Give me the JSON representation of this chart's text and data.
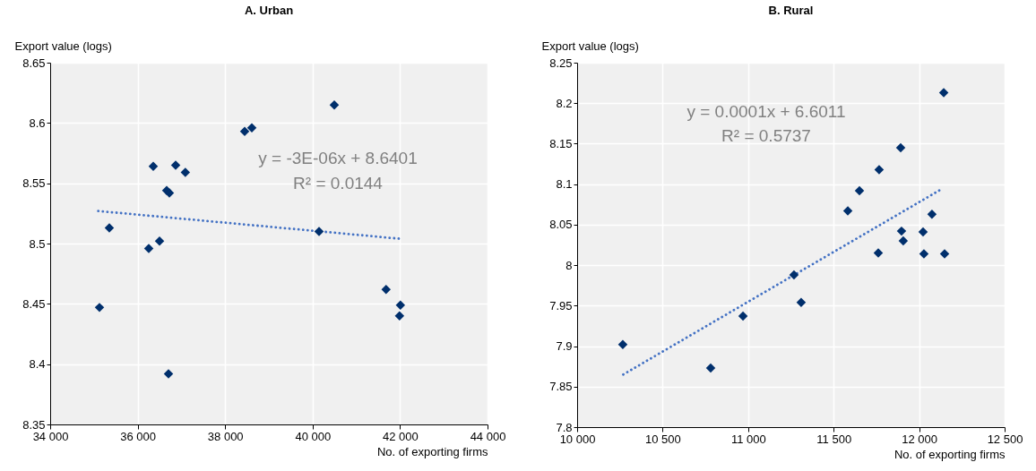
{
  "chart_data": [
    {
      "type": "scatter",
      "title": "A. Urban",
      "xlabel": "No. of exporting firms",
      "ylabel": "Export value (logs)",
      "xlim": [
        34000,
        44000
      ],
      "ylim": [
        8.35,
        8.65
      ],
      "xticks": [
        {
          "value": 34000,
          "label": "34 000"
        },
        {
          "value": 36000,
          "label": "36 000"
        },
        {
          "value": 38000,
          "label": "38 000"
        },
        {
          "value": 40000,
          "label": "40 000"
        },
        {
          "value": 42000,
          "label": "42 000"
        },
        {
          "value": 44000,
          "label": "44 000"
        }
      ],
      "yticks": [
        8.35,
        8.4,
        8.45,
        8.5,
        8.55,
        8.6,
        8.65
      ],
      "grid": true,
      "annotations": [
        "y = -3E-06x + 8.6401",
        "R² = 0.0144"
      ],
      "series": [
        {
          "color": "#002f6c",
          "marker": "diamond",
          "x": [
            35127,
            35352,
            36254,
            36357,
            36500,
            36664,
            36725,
            36869,
            37090,
            36705,
            38447,
            38611,
            40496,
            40148,
            41680,
            42008,
            41988
          ],
          "values": [
            8.447,
            8.513,
            8.496,
            8.564,
            8.502,
            8.544,
            8.542,
            8.565,
            8.559,
            8.392,
            8.593,
            8.596,
            8.615,
            8.51,
            8.462,
            8.449,
            8.44
          ]
        },
        {
          "type": "line",
          "color": "#4472c4",
          "line_style": "dotted",
          "marker": "none",
          "x": [
            35100,
            42000
          ],
          "values": [
            8.527,
            8.504
          ]
        }
      ]
    },
    {
      "type": "scatter",
      "title": "B. Rural",
      "xlabel": "No. of exporting firms",
      "ylabel": "Export value (logs)",
      "xlim": [
        10000,
        12500
      ],
      "ylim": [
        7.8,
        8.25
      ],
      "xticks": [
        {
          "value": 10000,
          "label": "10 000"
        },
        {
          "value": 10500,
          "label": "10 500"
        },
        {
          "value": 11000,
          "label": "11 000"
        },
        {
          "value": 11500,
          "label": "11 500"
        },
        {
          "value": 12000,
          "label": "12 000"
        },
        {
          "value": 12500,
          "label": "12 500"
        }
      ],
      "yticks": [
        7.8,
        7.85,
        7.9,
        7.95,
        8,
        8.05,
        8.1,
        8.15,
        8.2,
        8.25
      ],
      "grid": true,
      "annotations": [
        "y = 0.0001x + 6.6011",
        "R² = 0.5737"
      ],
      "series": [
        {
          "color": "#002f6c",
          "marker": "diamond",
          "x": [
            10267,
            10781,
            10970,
            11268,
            11310,
            11583,
            11651,
            11766,
            11761,
            11892,
            11897,
            11907,
            12023,
            12075,
            12028,
            12149,
            12144
          ],
          "values": [
            7.902,
            7.873,
            7.937,
            7.988,
            7.954,
            8.067,
            8.092,
            8.118,
            8.015,
            8.145,
            8.042,
            8.03,
            8.041,
            8.063,
            8.014,
            8.014,
            8.213
          ]
        },
        {
          "type": "line",
          "color": "#4472c4",
          "line_style": "dotted",
          "marker": "none",
          "x": [
            10270,
            12140
          ],
          "values": [
            7.865,
            8.095
          ]
        }
      ]
    }
  ]
}
